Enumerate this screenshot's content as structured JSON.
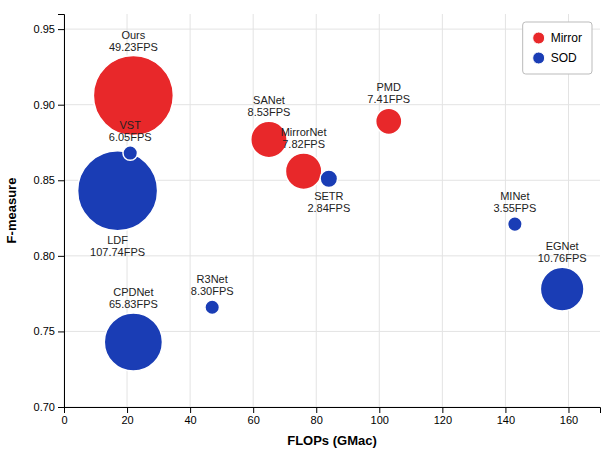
{
  "chart_data": {
    "type": "bubble",
    "xlabel": "FLOPs (GMac)",
    "ylabel": "F-measure",
    "xlim": [
      0,
      170
    ],
    "ylim": [
      0.7,
      0.96
    ],
    "xticks": [
      0,
      20,
      40,
      60,
      80,
      100,
      120,
      140,
      160
    ],
    "yticks": [
      {
        "value": 0.7,
        "label": "0.70"
      },
      0.75,
      {
        "value": 0.8,
        "label": "0.80"
      },
      0.85,
      {
        "value": 0.9,
        "label": "0.90"
      },
      0.95
    ],
    "grid": true,
    "legend": "upper right",
    "series": [
      {
        "name": "Mirror",
        "color": "#e8282a",
        "x": [
          22,
          65,
          76,
          103
        ],
        "values": [
          0.906,
          0.877,
          0.856,
          0.889
        ],
        "sizes": [
          55,
          25,
          25,
          18
        ],
        "labels": [
          [
            "Ours",
            "49.23FPS"
          ],
          [
            "SANet",
            "8.53FPS"
          ],
          [
            "MirrorNet",
            "7.82FPS"
          ],
          [
            "PMD",
            "7.41FPS"
          ]
        ]
      },
      {
        "name": "SOD",
        "color": "#1a3db5",
        "x": [
          21,
          17,
          22,
          47,
          84,
          143,
          158
        ],
        "values": [
          0.868,
          0.843,
          0.743,
          0.766,
          0.851,
          0.821,
          0.778
        ],
        "sizes": [
          10,
          55,
          40,
          10,
          12,
          10,
          30
        ],
        "labels": [
          [
            "VST",
            "6.05FPS"
          ],
          [
            "LDF",
            "107.74FPS"
          ],
          [
            "CPDNet",
            "65.83FPS"
          ],
          [
            "R3Net",
            "8.30FPS"
          ],
          [
            "SETR",
            "2.84FPS"
          ],
          [
            "MINet",
            "3.55FPS"
          ],
          [
            "EGNet",
            "10.76FPS"
          ]
        ]
      }
    ]
  }
}
